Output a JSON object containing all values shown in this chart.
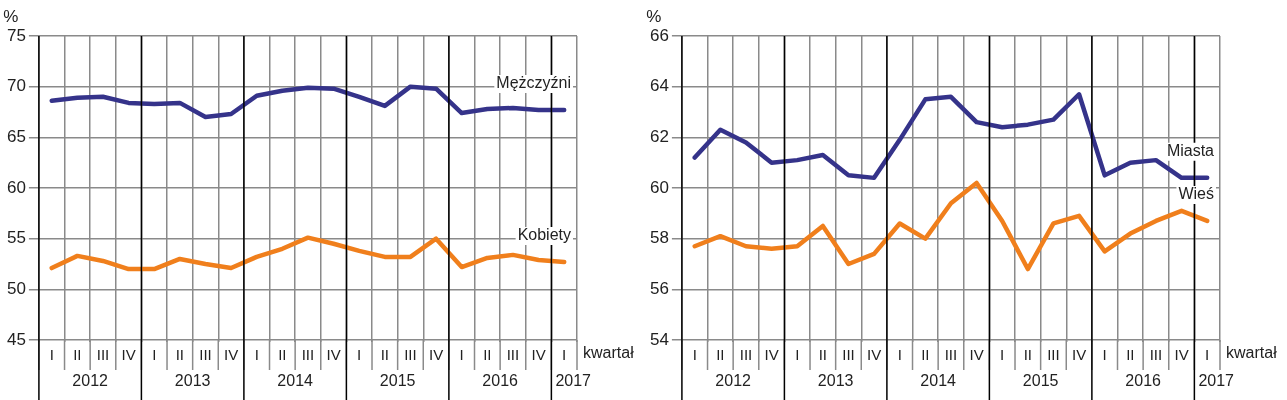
{
  "chart_data": [
    {
      "type": "line",
      "ylabel": "%",
      "xlabel": "kwartał",
      "categories": [
        "I",
        "II",
        "III",
        "IV",
        "I",
        "II",
        "III",
        "IV",
        "I",
        "II",
        "III",
        "IV",
        "I",
        "II",
        "III",
        "IV",
        "I",
        "II",
        "III",
        "IV",
        "I"
      ],
      "series": [
        {
          "name": "Mężczyźni",
          "color": "#35338a",
          "values": [
            68.6,
            68.9,
            69.0,
            68.4,
            68.3,
            68.4,
            67.0,
            67.3,
            69.1,
            69.6,
            69.9,
            69.8,
            69.0,
            68.1,
            70.0,
            69.8,
            67.4,
            67.8,
            67.9,
            67.7,
            67.7
          ]
        },
        {
          "name": "Kobiety",
          "color": "#f07f1c",
          "values": [
            52.1,
            53.3,
            52.8,
            52.0,
            52.0,
            53.0,
            52.5,
            52.1,
            53.2,
            54.0,
            55.1,
            54.5,
            53.8,
            53.2,
            53.2,
            55.0,
            52.2,
            53.1,
            53.4,
            52.9,
            52.7
          ]
        }
      ],
      "ylim": [
        45,
        75
      ],
      "yticks": [
        45,
        50,
        55,
        60,
        65,
        70,
        75
      ],
      "grid": true,
      "legend": false,
      "marker": "none",
      "line_style": "solid",
      "annotations": [
        "2012",
        "2013",
        "2014",
        "2015",
        "2016",
        "2017"
      ]
    },
    {
      "type": "line",
      "ylabel": "%",
      "xlabel": "kwartał",
      "categories": [
        "I",
        "II",
        "III",
        "IV",
        "I",
        "II",
        "III",
        "IV",
        "I",
        "II",
        "III",
        "IV",
        "I",
        "II",
        "III",
        "IV",
        "I",
        "II",
        "III",
        "IV",
        "I"
      ],
      "series": [
        {
          "name": "Miasta",
          "color": "#35338a",
          "values": [
            61.2,
            62.3,
            61.8,
            61.0,
            61.1,
            61.3,
            60.5,
            60.4,
            61.9,
            63.5,
            63.6,
            62.6,
            62.4,
            62.5,
            62.7,
            63.7,
            60.5,
            61.0,
            61.1,
            60.4,
            60.4
          ]
        },
        {
          "name": "Wieś",
          "color": "#f07f1c",
          "values": [
            57.7,
            58.1,
            57.7,
            57.6,
            57.7,
            58.5,
            57.0,
            57.4,
            58.6,
            58.0,
            59.4,
            60.2,
            58.7,
            56.8,
            58.6,
            58.9,
            57.5,
            58.2,
            58.7,
            59.1,
            58.7
          ]
        }
      ],
      "ylim": [
        54,
        66
      ],
      "yticks": [
        54,
        56,
        58,
        60,
        62,
        64,
        66
      ],
      "grid": true,
      "legend": false,
      "marker": "none",
      "line_style": "solid",
      "annotations": [
        "2012",
        "2013",
        "2014",
        "2015",
        "2016",
        "2017"
      ]
    }
  ]
}
